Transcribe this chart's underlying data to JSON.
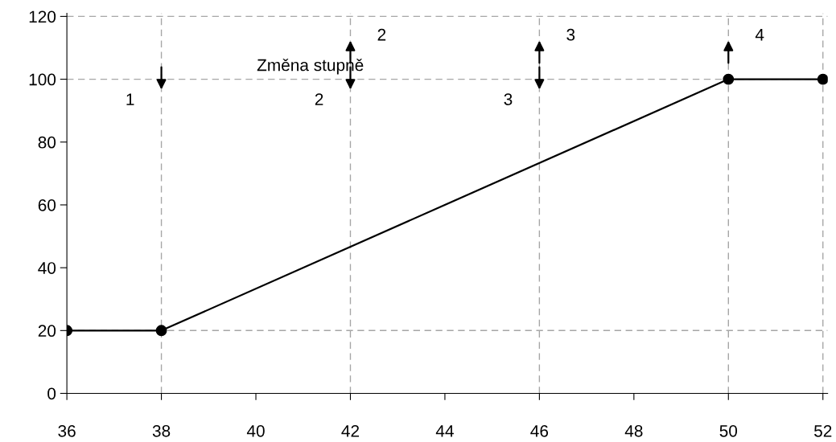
{
  "chart_data": {
    "type": "line",
    "x": [
      36,
      38,
      50,
      52
    ],
    "values": [
      20,
      20,
      100,
      100
    ],
    "color": "#000000",
    "marker": "circle",
    "line_style": "solid",
    "grid": false,
    "xlim": [
      36,
      52.1
    ],
    "xticks": [
      36,
      38,
      40,
      42,
      44,
      46,
      48,
      50,
      52
    ],
    "ylim": [
      0,
      121
    ],
    "yticks": [
      0,
      20,
      40,
      60,
      80,
      100,
      120
    ],
    "ref_lines": [
      {
        "axis": "x",
        "value": 38,
        "color": "#a6a6a6",
        "line_style": "dashed"
      },
      {
        "axis": "x",
        "value": 42,
        "color": "#a6a6a6",
        "line_style": "dashed"
      },
      {
        "axis": "x",
        "value": 46,
        "color": "#a6a6a6",
        "line_style": "dashed"
      },
      {
        "axis": "x",
        "value": 50,
        "color": "#a6a6a6",
        "line_style": "dashed"
      },
      {
        "axis": "x",
        "value": 52,
        "color": "#a6a6a6",
        "line_style": "dashed"
      },
      {
        "axis": "y",
        "value": 20,
        "color": "#a6a6a6",
        "line_style": "dashed"
      },
      {
        "axis": "y",
        "value": 100,
        "color": "#a6a6a6",
        "line_style": "dashed"
      },
      {
        "axis": "y",
        "value": 120,
        "color": "#a6a6a6",
        "line_style": "dashed"
      }
    ],
    "annotations": [
      "Změna stupně",
      {
        "text": "1",
        "x": 38,
        "y": 96
      },
      {
        "text": "2",
        "x": 42,
        "y": 96
      },
      {
        "text": "2",
        "x": 42,
        "y": 113
      },
      {
        "text": "3",
        "x": 46,
        "y": 96
      },
      {
        "text": "3",
        "x": 46,
        "y": 113
      },
      {
        "text": "4",
        "x": 50,
        "y": 113
      }
    ]
  }
}
